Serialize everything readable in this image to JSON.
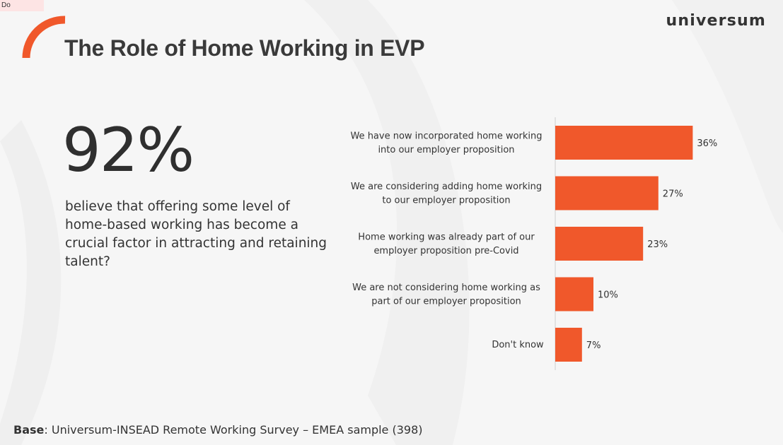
{
  "corner_tab": "Do",
  "header": {
    "title": "The Role of Home Working in EVP",
    "logo": "universum"
  },
  "stat": {
    "value": "92%",
    "description": "believe that offering some level of home-based working has become a crucial factor in attracting and retaining talent?"
  },
  "footer": {
    "base_label": "Base",
    "base_text": ": Universum-INSEAD Remote Working Survey – EMEA sample (398)"
  },
  "colors": {
    "accent": "#f0582b",
    "axis": "#cfcfcf"
  },
  "chart_data": {
    "type": "bar",
    "orientation": "horizontal",
    "categories": [
      [
        "We have now incorporated home working",
        "into our employer proposition"
      ],
      [
        "We are considering adding home working",
        "to our employer proposition"
      ],
      [
        "Home working was already part of our",
        "employer proposition pre-Covid"
      ],
      [
        "We are not considering home working as",
        "part of our employer proposition"
      ],
      [
        "Don't know"
      ]
    ],
    "values": [
      36,
      27,
      23,
      10,
      7
    ],
    "value_labels": [
      "36%",
      "27%",
      "23%",
      "10%",
      "7%"
    ],
    "xlim": [
      0,
      40
    ],
    "title": "",
    "xlabel": "",
    "ylabel": "",
    "grid": false,
    "legend": "none"
  }
}
